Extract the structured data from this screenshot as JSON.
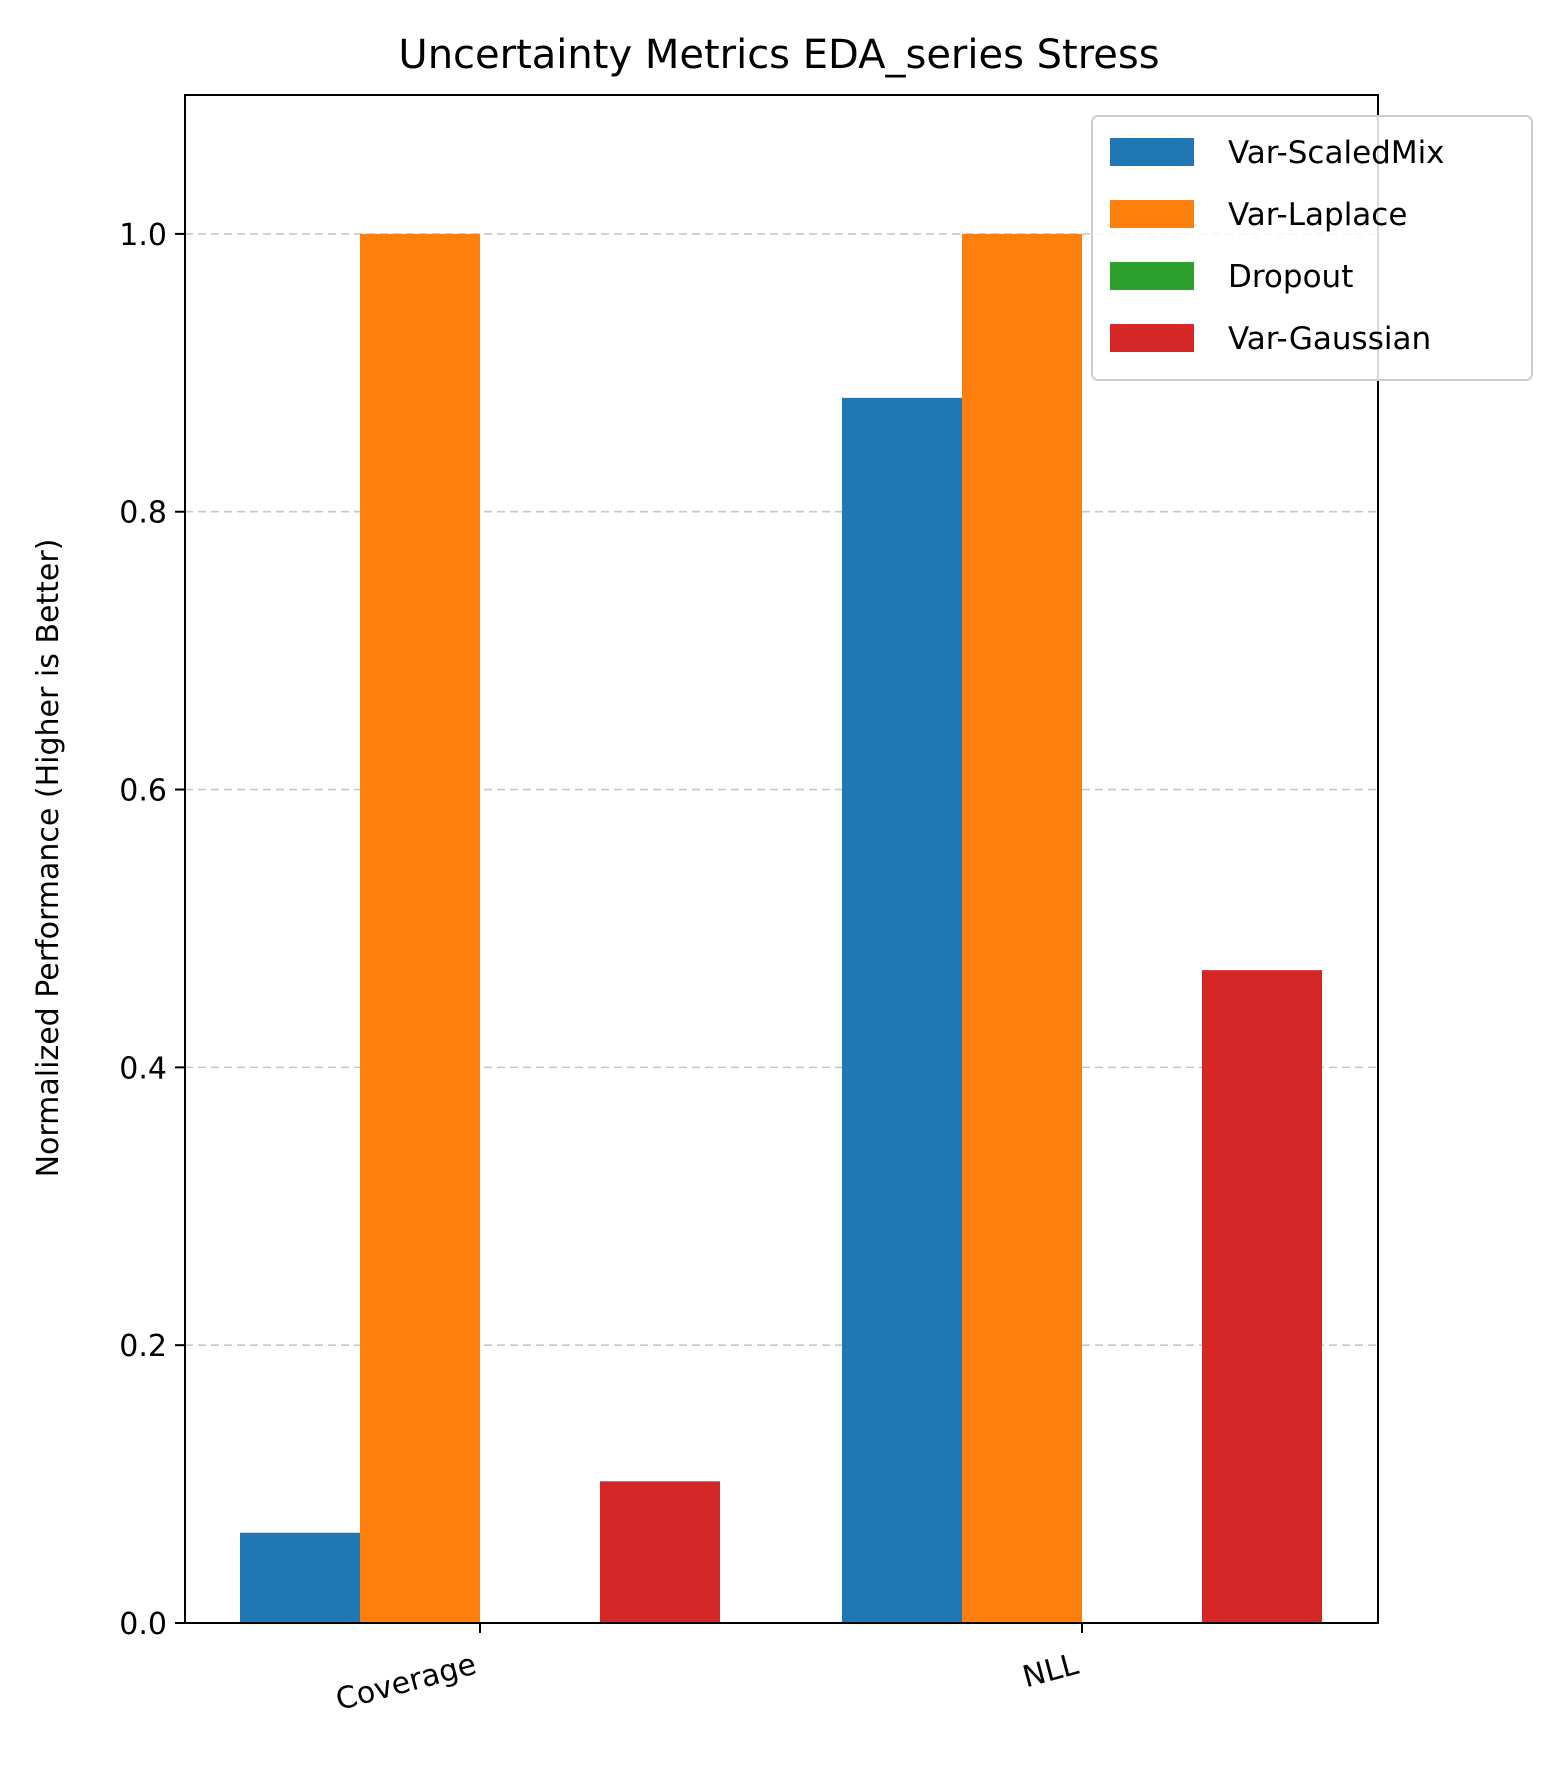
{
  "chart_data": {
    "type": "bar",
    "title": "Uncertainty Metrics EDA_series Stress",
    "xlabel": "",
    "ylabel": "Normalized Performance (Higher is Better)",
    "categories": [
      "Coverage",
      "NLL"
    ],
    "series": [
      {
        "name": "Var-ScaledMix",
        "color": "#1f77b4",
        "values": [
          0.065,
          0.882
        ]
      },
      {
        "name": "Var-Laplace",
        "color": "#ff7f0e",
        "values": [
          1.0,
          1.0
        ]
      },
      {
        "name": "Dropout",
        "color": "#2ca02c",
        "values": [
          0.0,
          0.0
        ]
      },
      {
        "name": "Var-Gaussian",
        "color": "#d62728",
        "values": [
          0.102,
          0.47
        ]
      }
    ],
    "ylim": [
      0,
      1.1
    ],
    "yticks": [
      "0.0",
      "0.2",
      "0.4",
      "0.6",
      "0.8",
      "1.0"
    ],
    "grid": "y-dashed",
    "legend_position": "top-right"
  }
}
